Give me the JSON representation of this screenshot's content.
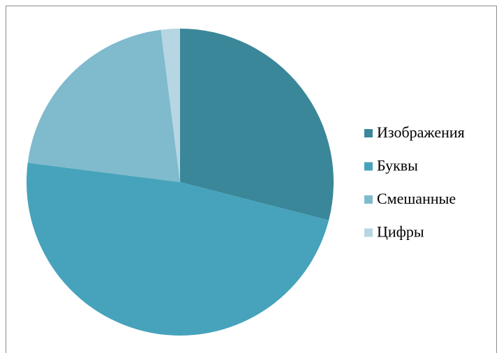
{
  "chart_data": {
    "type": "pie",
    "categories": [
      "Изображения",
      "Буквы",
      "Смешанные",
      "Цифры"
    ],
    "values": [
      29,
      48,
      21,
      2
    ],
    "colors": [
      "#3a8799",
      "#46a3bb",
      "#7fbacd",
      "#b5d6e2"
    ],
    "legend": "right"
  }
}
